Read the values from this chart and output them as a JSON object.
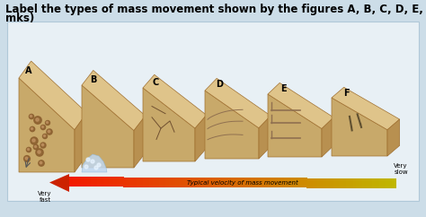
{
  "title_line1": "Label the types of mass movement shown by the figures A, B, C, D, E, and F below (6",
  "title_line2": "mks)",
  "title_fontsize": 8.5,
  "bg_color": "#ccdde8",
  "panel_bg": "#e8f0f5",
  "fig_labels": [
    "A",
    "B",
    "C",
    "D",
    "E",
    "F"
  ],
  "arrow_label": "Typical velocity of mass movement",
  "very_fast": "Very\nfast",
  "very_slow": "Very\nslow",
  "tan_body": "#c8a96a",
  "tan_top": "#dfc48a",
  "tan_side": "#b89050",
  "tan_dark": "#a07030",
  "debris_color": "#8c6030",
  "water_color": "#c0d8f0",
  "arrow_left_color": "#cc2200",
  "arrow_right_color": "#e8b800"
}
